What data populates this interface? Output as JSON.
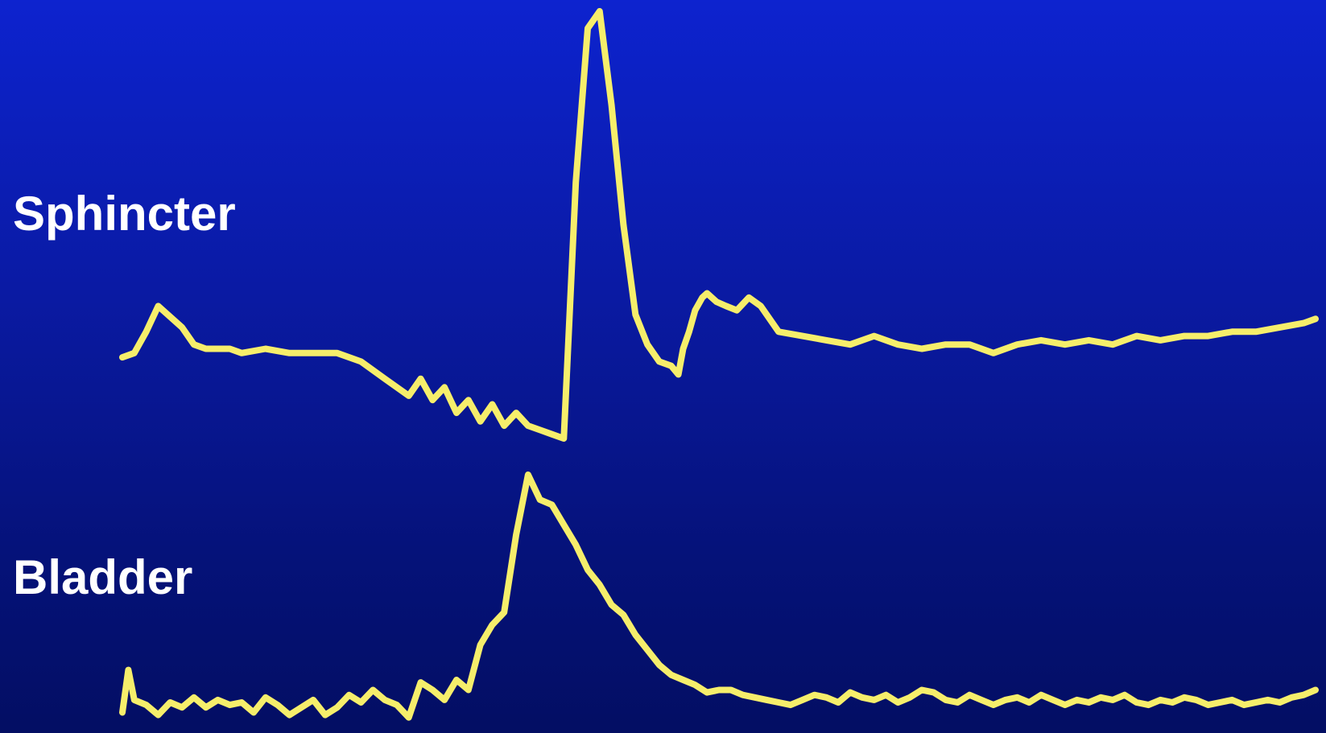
{
  "chart_data": {
    "type": "line",
    "title": "",
    "xlabel": "",
    "ylabel": "",
    "grid": false,
    "legend": "none",
    "trace_color": "#f6ee6b",
    "background_colors": [
      "#0d23cf",
      "#030e63"
    ],
    "x_unit": "relative time (0-100)",
    "y_unit": "relative amplitude (0-100)",
    "series": [
      {
        "name": "Sphincter",
        "ylim": [
          0,
          100
        ],
        "x": [
          0,
          1,
          2,
          3,
          5,
          6,
          7,
          8,
          9,
          10,
          12,
          14,
          16,
          18,
          20,
          22,
          24,
          25,
          26,
          27,
          28,
          29,
          30,
          31,
          32,
          33,
          34,
          35,
          36,
          37,
          38,
          39,
          40,
          41,
          42,
          43,
          44,
          45,
          46,
          46.6,
          47,
          47.5,
          48,
          48.6,
          49,
          49.8,
          50.6,
          51.5,
          52.5,
          53.5,
          55,
          57,
          59,
          61,
          63,
          65,
          67,
          69,
          71,
          73,
          75,
          77,
          79,
          81,
          83,
          85,
          87,
          89,
          91,
          93,
          95,
          97,
          99,
          100
        ],
        "values": [
          19,
          20,
          25,
          31,
          26,
          22,
          21,
          21,
          21,
          20,
          21,
          20,
          20,
          20,
          18,
          14,
          10,
          14,
          9,
          12,
          6,
          9,
          4,
          8,
          3,
          6,
          3,
          2,
          1,
          0,
          60,
          96,
          100,
          78,
          50,
          29,
          22,
          18,
          17,
          15,
          21,
          25,
          30,
          33,
          34,
          32,
          31,
          30,
          33,
          31,
          25,
          24,
          23,
          22,
          24,
          22,
          21,
          22,
          22,
          20,
          22,
          23,
          22,
          23,
          22,
          24,
          23,
          24,
          24,
          25,
          25,
          26,
          27,
          28
        ]
      },
      {
        "name": "Bladder",
        "ylim": [
          0,
          100
        ],
        "x": [
          0,
          0.5,
          1,
          2,
          3,
          4,
          5,
          6,
          7,
          8,
          9,
          10,
          11,
          12,
          13,
          14,
          15,
          16,
          17,
          18,
          19,
          20,
          21,
          22,
          23,
          24,
          25,
          26,
          27,
          28,
          29,
          30,
          31,
          32,
          33,
          34,
          35,
          36,
          37,
          38,
          39,
          40,
          41,
          42,
          43,
          44,
          45,
          46,
          47,
          48,
          49,
          50,
          51,
          52,
          53,
          54,
          55,
          56,
          57,
          58,
          59,
          60,
          61,
          62,
          63,
          64,
          65,
          66,
          67,
          68,
          69,
          70,
          71,
          72,
          73,
          74,
          75,
          76,
          77,
          78,
          79,
          80,
          81,
          82,
          83,
          84,
          85,
          86,
          87,
          88,
          89,
          90,
          91,
          92,
          93,
          94,
          95,
          96,
          97,
          98,
          99,
          100
        ],
        "values": [
          5,
          22,
          10,
          8,
          4,
          9,
          7,
          11,
          7,
          10,
          8,
          9,
          5,
          11,
          8,
          4,
          7,
          10,
          4,
          7,
          12,
          9,
          14,
          10,
          8,
          3,
          17,
          14,
          10,
          18,
          14,
          32,
          40,
          45,
          76,
          100,
          90,
          88,
          80,
          72,
          62,
          56,
          48,
          44,
          36,
          30,
          24,
          20,
          18,
          16,
          13,
          14,
          14,
          12,
          11,
          10,
          9,
          8,
          10,
          12,
          11,
          9,
          13,
          11,
          10,
          12,
          9,
          11,
          14,
          13,
          10,
          9,
          12,
          10,
          8,
          10,
          11,
          9,
          12,
          10,
          8,
          10,
          9,
          11,
          10,
          12,
          9,
          8,
          10,
          9,
          11,
          10,
          8,
          9,
          10,
          8,
          9,
          10,
          9,
          11,
          12,
          14
        ]
      }
    ]
  }
}
